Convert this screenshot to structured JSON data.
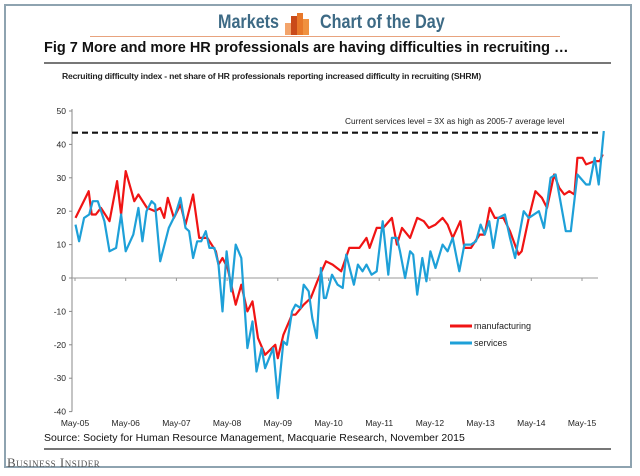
{
  "header": {
    "left": "Markets",
    "right": "Chart of the Day"
  },
  "figure_title": "Fig 7   More and more HR professionals are having difficulties in recruiting …",
  "source": "Source: Society for Human Resource Management, Macquarie Research, November 2015",
  "brand": "Business Insider",
  "colors": {
    "manufacturing": "#f01414",
    "services": "#1ea0d8",
    "header": "#3d6a85",
    "logo": "#e8782a"
  },
  "chart_data": {
    "type": "line",
    "title": "Recruiting difficulty index - net share of HR professionals reporting increased difficulty in recruiting (SHRM)",
    "xlabel": "",
    "ylabel": "",
    "ylim": [
      -40,
      50
    ],
    "yticks": [
      -40,
      -30,
      -20,
      -10,
      0,
      10,
      20,
      30,
      40,
      50
    ],
    "xlim": [
      2005.33,
      2015.8
    ],
    "xticks": [
      {
        "x": 2005.33,
        "label": "May-05"
      },
      {
        "x": 2006.33,
        "label": "May-06"
      },
      {
        "x": 2007.33,
        "label": "May-07"
      },
      {
        "x": 2008.33,
        "label": "May-08"
      },
      {
        "x": 2009.33,
        "label": "May-09"
      },
      {
        "x": 2010.33,
        "label": "May-10"
      },
      {
        "x": 2011.33,
        "label": "May-11"
      },
      {
        "x": 2012.33,
        "label": "May-12"
      },
      {
        "x": 2013.33,
        "label": "May-13"
      },
      {
        "x": 2014.33,
        "label": "May-14"
      },
      {
        "x": 2015.33,
        "label": "May-15"
      }
    ],
    "reference_line": {
      "y": 43.5,
      "label": "Current services level  = 3X as high as 2005-7 average level"
    },
    "legend": {
      "position": "lower-right"
    },
    "series": [
      {
        "name": "manufacturing",
        "x": [
          2005.34,
          2005.6,
          2005.66,
          2005.74,
          2005.84,
          2006.01,
          2006.16,
          2006.24,
          2006.33,
          2006.5,
          2006.58,
          2006.75,
          2006.91,
          2007.01,
          2007.09,
          2007.16,
          2007.28,
          2007.41,
          2007.51,
          2007.66,
          2007.78,
          2007.94,
          2008.11,
          2008.16,
          2008.24,
          2008.34,
          2008.5,
          2008.61,
          2008.73,
          2008.83,
          2008.94,
          2009.08,
          2009.28,
          2009.33,
          2009.44,
          2009.61,
          2009.68,
          2009.84,
          2009.98,
          2010.11,
          2010.28,
          2010.41,
          2010.58,
          2010.74,
          2010.94,
          2011.08,
          2011.14,
          2011.28,
          2011.41,
          2011.58,
          2011.68,
          2011.78,
          2011.94,
          2012.08,
          2012.21,
          2012.31,
          2012.44,
          2012.58,
          2012.68,
          2012.78,
          2012.93,
          2013.01,
          2013.14,
          2013.31,
          2013.41,
          2013.51,
          2013.61,
          2013.78,
          2013.91,
          2014.08,
          2014.14,
          2014.28,
          2014.41,
          2014.54,
          2014.64,
          2014.78,
          2014.88,
          2014.98,
          2015.08,
          2015.18,
          2015.24,
          2015.34,
          2015.41,
          2015.58,
          2015.68,
          2015.74
        ],
        "values": [
          18,
          26,
          19,
          19,
          21,
          17,
          29,
          19,
          32,
          23,
          25,
          21,
          20,
          21,
          18,
          24,
          18,
          22,
          16,
          25,
          12,
          12,
          8,
          4,
          6,
          3,
          -8,
          -2,
          -10,
          -7,
          -18,
          -23,
          -20,
          -24,
          -17,
          -11,
          -11,
          -8,
          -6,
          -1,
          5,
          4,
          2,
          9,
          9,
          12,
          9,
          15,
          15,
          18,
          10,
          15,
          12,
          18,
          17,
          15,
          16,
          18,
          16,
          12,
          17,
          9,
          9,
          13,
          13,
          21,
          18,
          18,
          14,
          7,
          8,
          18,
          26,
          24,
          21,
          31,
          27,
          25,
          26,
          25,
          36,
          36,
          34,
          35,
          35,
          37
        ]
      },
      {
        "name": "services",
        "x": [
          2005.34,
          2005.41,
          2005.51,
          2005.61,
          2005.68,
          2005.78,
          2005.91,
          2006.01,
          2006.14,
          2006.24,
          2006.33,
          2006.48,
          2006.58,
          2006.66,
          2006.74,
          2006.84,
          2006.91,
          2007.01,
          2007.18,
          2007.31,
          2007.41,
          2007.51,
          2007.58,
          2007.66,
          2007.74,
          2007.82,
          2007.91,
          2007.98,
          2008.08,
          2008.16,
          2008.24,
          2008.32,
          2008.41,
          2008.5,
          2008.61,
          2008.73,
          2008.83,
          2008.91,
          2009.01,
          2009.08,
          2009.24,
          2009.33,
          2009.44,
          2009.51,
          2009.61,
          2009.68,
          2009.78,
          2009.84,
          2009.94,
          2010.01,
          2010.1,
          2010.18,
          2010.24,
          2010.28,
          2010.4,
          2010.51,
          2010.61,
          2010.68,
          2010.83,
          2010.91,
          2011.0,
          2011.08,
          2011.18,
          2011.28,
          2011.4,
          2011.51,
          2011.58,
          2011.68,
          2011.74,
          2011.84,
          2011.94,
          2012.0,
          2012.08,
          2012.18,
          2012.26,
          2012.34,
          2012.44,
          2012.58,
          2012.68,
          2012.78,
          2012.91,
          2013.01,
          2013.14,
          2013.24,
          2013.33,
          2013.41,
          2013.5,
          2013.58,
          2013.68,
          2013.81,
          2013.91,
          2014.01,
          2014.18,
          2014.28,
          2014.48,
          2014.58,
          2014.71,
          2014.81,
          2015.01,
          2015.11,
          2015.24,
          2015.41,
          2015.48,
          2015.58,
          2015.66,
          2015.76
        ],
        "values": [
          16,
          11,
          18,
          19,
          23,
          23,
          17,
          8,
          9,
          19,
          8,
          13,
          21,
          11,
          20,
          23,
          22,
          5,
          15,
          19,
          24,
          15,
          14,
          6,
          11,
          11,
          14,
          9,
          9,
          4,
          -10,
          8,
          -4,
          10,
          6,
          -21,
          -13,
          -28,
          -21,
          -27,
          -21,
          -36,
          -19,
          -20,
          -10,
          -8,
          -9,
          -2,
          -4,
          -12,
          -18,
          3,
          -6,
          -6,
          1,
          -2,
          -3,
          7,
          -2,
          4,
          2,
          4,
          1,
          2,
          17,
          1,
          12,
          12,
          8,
          0,
          8,
          7,
          -5,
          6,
          -1,
          8,
          3,
          10,
          8,
          12,
          2,
          10,
          10,
          11,
          16,
          13,
          17,
          9,
          18,
          19,
          12,
          6,
          20,
          18,
          20,
          15,
          30,
          31,
          14,
          14,
          31,
          28,
          28,
          36,
          28,
          44
        ]
      }
    ]
  }
}
